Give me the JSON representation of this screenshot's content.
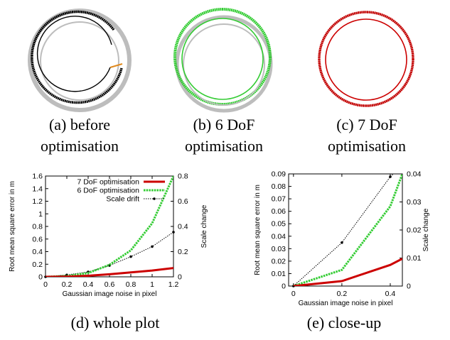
{
  "colors": {
    "before": "#000000",
    "ground_truth": "#bdbdbd",
    "six_dof": "#33cc33",
    "seven_dof": "#cc0000",
    "gap": "#e08a1e",
    "scale": "#000000"
  },
  "panels": {
    "a": {
      "caption_line1": "(a) before",
      "caption_line2": "optimisation"
    },
    "b": {
      "caption_line1": "(b) 6 DoF",
      "caption_line2": "optimisation"
    },
    "c": {
      "caption_line1": "(c) 7 DoF",
      "caption_line2": "optimisation"
    },
    "d": {
      "caption": "(d) whole plot"
    },
    "e": {
      "caption": "(e) close-up"
    }
  },
  "chart_data": [
    {
      "type": "line",
      "xlabel": "Gaussian image noise in pixel",
      "ylabel": "Root mean square error in m",
      "y2label": "Scale change",
      "xlim": [
        0,
        1.2
      ],
      "ylim": [
        0,
        1.6
      ],
      "y2lim": [
        0,
        0.8
      ],
      "xticks": [
        "0",
        "0.2",
        "0.4",
        "0.6",
        "0.8",
        "1",
        "1.2"
      ],
      "yticks": [
        "0",
        "0.2",
        "0.4",
        "0.6",
        "0.8",
        "1",
        "1.2",
        "1.4",
        "1.6"
      ],
      "y2ticks": [
        "0",
        "0.2",
        "0.4",
        "0.6",
        "0.8"
      ],
      "legend": "top-left",
      "grid": false,
      "x": [
        0,
        0.2,
        0.4,
        0.6,
        0.8,
        1.0,
        1.2
      ],
      "series": [
        {
          "name": "7 DoF optimisation",
          "axis": "left",
          "values": [
            0,
            0.004,
            0.017,
            0.04,
            0.07,
            0.1,
            0.14
          ]
        },
        {
          "name": "6 DoF optimisation",
          "axis": "left",
          "values": [
            0,
            0.013,
            0.06,
            0.19,
            0.42,
            0.85,
            1.6
          ]
        },
        {
          "name": "Scale drift",
          "axis": "right",
          "values": [
            0,
            0.015,
            0.039,
            0.09,
            0.16,
            0.24,
            0.355
          ]
        }
      ]
    },
    {
      "type": "line",
      "xlabel": "Gaussian image noise in pixel",
      "ylabel": "Root mean square error in m",
      "y2label": "Scale change",
      "xlim": [
        -0.02,
        0.45
      ],
      "ylim": [
        0,
        0.09
      ],
      "y2lim": [
        0,
        0.04
      ],
      "xticks": [
        "0",
        "0.2",
        "0.4"
      ],
      "yticks": [
        "0",
        "0.01",
        "0.02",
        "0.03",
        "0.04",
        "0.05",
        "0.06",
        "0.07",
        "0.08",
        "0.09"
      ],
      "y2ticks": [
        "0",
        "0.01",
        "0.02",
        "0.03",
        "0.04"
      ],
      "grid": false,
      "x": [
        0,
        0.2,
        0.4,
        0.45
      ],
      "series": [
        {
          "name": "7 DoF optimisation",
          "axis": "left",
          "values": [
            0,
            0.004,
            0.017,
            0.022
          ]
        },
        {
          "name": "6 DoF optimisation",
          "axis": "left",
          "values": [
            0,
            0.013,
            0.064,
            0.09
          ]
        },
        {
          "name": "Scale drift",
          "axis": "right",
          "values": [
            0,
            0.0155,
            0.039,
            0.043
          ]
        }
      ]
    }
  ]
}
